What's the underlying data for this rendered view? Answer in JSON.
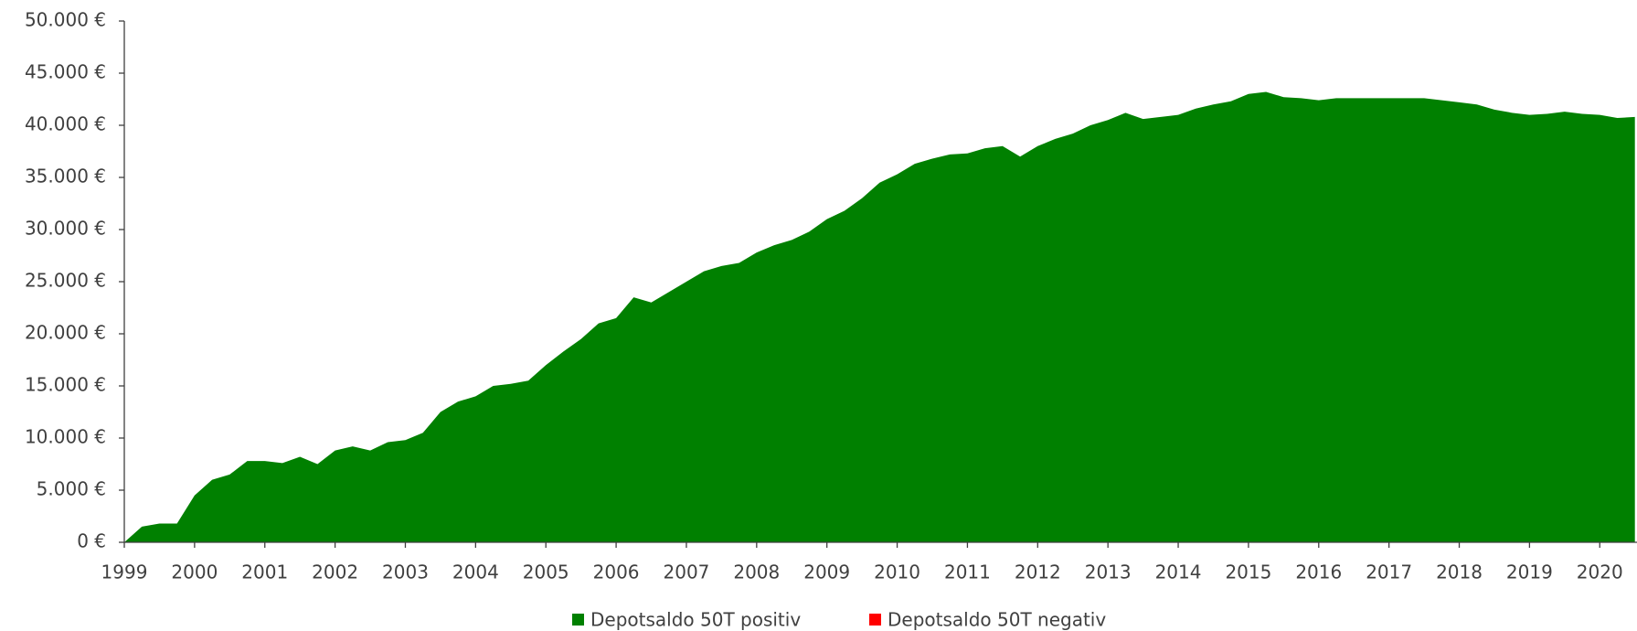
{
  "chart_data": {
    "type": "area",
    "x": [
      1999.0,
      1999.25,
      1999.5,
      1999.75,
      2000.0,
      2000.25,
      2000.5,
      2000.75,
      2001.0,
      2001.25,
      2001.5,
      2001.75,
      2002.0,
      2002.25,
      2002.5,
      2002.75,
      2003.0,
      2003.25,
      2003.5,
      2003.75,
      2004.0,
      2004.25,
      2004.5,
      2004.75,
      2005.0,
      2005.25,
      2005.5,
      2005.75,
      2006.0,
      2006.25,
      2006.5,
      2006.75,
      2007.0,
      2007.25,
      2007.5,
      2007.75,
      2008.0,
      2008.25,
      2008.5,
      2008.75,
      2009.0,
      2009.25,
      2009.5,
      2009.75,
      2010.0,
      2010.25,
      2010.5,
      2010.75,
      2011.0,
      2011.25,
      2011.5,
      2011.75,
      2012.0,
      2012.25,
      2012.5,
      2012.75,
      2013.0,
      2013.25,
      2013.5,
      2013.75,
      2014.0,
      2014.25,
      2014.5,
      2014.75,
      2015.0,
      2015.25,
      2015.5,
      2015.75,
      2016.0,
      2016.25,
      2016.5,
      2016.75,
      2017.0,
      2017.25,
      2017.5,
      2017.75,
      2018.0,
      2018.25,
      2018.5,
      2018.75,
      2019.0,
      2019.25,
      2019.5,
      2019.75,
      2020.0,
      2020.25,
      2020.5
    ],
    "series": [
      {
        "name": "Depotsaldo 50T positiv",
        "color": "#008000",
        "values": [
          0,
          1500,
          1800,
          1800,
          4500,
          6000,
          6500,
          7800,
          7800,
          7600,
          8200,
          7500,
          8800,
          9200,
          8800,
          9600,
          9800,
          10500,
          12500,
          13500,
          14000,
          15000,
          15200,
          15500,
          17000,
          18300,
          19500,
          21000,
          21500,
          23500,
          23000,
          24000,
          25000,
          26000,
          26500,
          26800,
          27800,
          28500,
          29000,
          29800,
          31000,
          31800,
          33000,
          34500,
          35300,
          36300,
          36800,
          37200,
          37300,
          37800,
          38000,
          37000,
          38000,
          38700,
          39200,
          40000,
          40500,
          41200,
          40600,
          40800,
          41000,
          41600,
          42000,
          42300,
          43000,
          43200,
          42700,
          42600,
          42400,
          42600,
          42600,
          42600,
          42600,
          42600,
          42600,
          42400,
          42200,
          42000,
          41500,
          41200,
          41000,
          41100,
          41300,
          41100,
          41000,
          40700,
          40800
        ]
      },
      {
        "name": "Depotsaldo 50T negativ",
        "color": "#ff0000",
        "values": [
          0,
          0,
          0,
          0,
          0,
          0,
          0,
          0,
          0,
          0,
          0,
          0,
          0,
          0,
          0,
          0,
          0,
          0,
          0,
          0,
          0,
          0,
          0,
          0,
          0,
          0,
          0,
          0,
          0,
          0,
          0,
          0,
          0,
          0,
          0,
          0,
          0,
          0,
          0,
          0,
          0,
          0,
          0,
          0,
          0,
          0,
          0,
          0,
          0,
          0,
          0,
          0,
          0,
          0,
          0,
          0,
          0,
          0,
          0,
          0,
          0,
          0,
          0,
          0,
          0,
          0,
          0,
          0,
          0,
          0,
          0,
          0,
          0,
          0,
          0,
          0,
          0,
          0,
          0,
          0,
          0,
          0,
          0,
          0,
          0,
          0,
          0
        ]
      }
    ],
    "xlim": [
      1999,
      2020.53
    ],
    "xticks": [
      1999,
      2000,
      2001,
      2002,
      2003,
      2004,
      2005,
      2006,
      2007,
      2008,
      2009,
      2010,
      2011,
      2012,
      2013,
      2014,
      2015,
      2016,
      2017,
      2018,
      2019,
      2020
    ],
    "ylim": [
      0,
      50000
    ],
    "yticks": [
      {
        "value": 0,
        "label": "0 €"
      },
      {
        "value": 5000,
        "label": "5.000 €"
      },
      {
        "value": 10000,
        "label": "10.000 €"
      },
      {
        "value": 15000,
        "label": "15.000 €"
      },
      {
        "value": 20000,
        "label": "20.000 €"
      },
      {
        "value": 25000,
        "label": "25.000 €"
      },
      {
        "value": 30000,
        "label": "30.000 €"
      },
      {
        "value": 35000,
        "label": "35.000 €"
      },
      {
        "value": 40000,
        "label": "40.000 €"
      },
      {
        "value": 45000,
        "label": "45.000 €"
      },
      {
        "value": 50000,
        "label": "50.000 €"
      }
    ],
    "legend": "bottom"
  }
}
